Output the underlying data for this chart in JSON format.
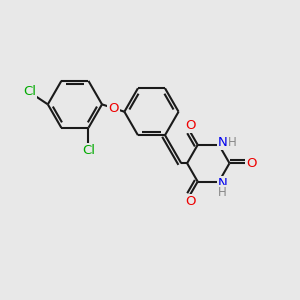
{
  "background_color": "#e8e8e8",
  "bond_color": "#1a1a1a",
  "cl_color": "#00aa00",
  "o_color": "#ee0000",
  "n_color": "#0000ee",
  "h_color": "#888888",
  "bond_width": 1.5,
  "figsize": [
    3.0,
    3.0
  ],
  "dpi": 100,
  "xlim": [
    0,
    10
  ],
  "ylim": [
    0,
    10
  ],
  "font_size": 9.5
}
